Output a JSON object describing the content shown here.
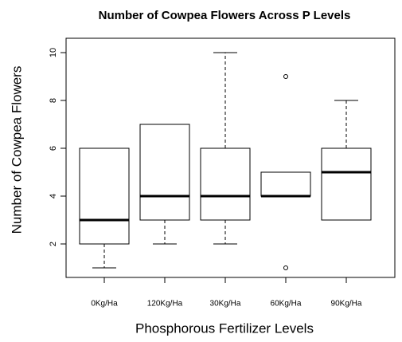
{
  "chart_data": {
    "type": "box",
    "title": "Number of Cowpea Flowers Across P Levels",
    "x_label": "Phosphorous Fertilizer Levels",
    "y_label": "Number of Cowpea Flowers",
    "categories": [
      "0Kg/Ha",
      "120Kg/Ha",
      "30Kg/Ha",
      "60Kg/Ha",
      "90Kg/Ha"
    ],
    "min": [
      1,
      2,
      2,
      4,
      3
    ],
    "q1": [
      2,
      3,
      3,
      4,
      3
    ],
    "median": [
      3,
      4,
      4,
      4,
      5
    ],
    "q3": [
      6,
      7,
      6,
      5,
      6
    ],
    "max": [
      6,
      7,
      10,
      5,
      8
    ],
    "outliers": [
      [],
      [],
      [],
      [
        1,
        9
      ],
      []
    ],
    "ylim": [
      0.6,
      10.6
    ],
    "yticks": [
      2,
      4,
      6,
      8,
      10
    ],
    "color": "#000000"
  }
}
